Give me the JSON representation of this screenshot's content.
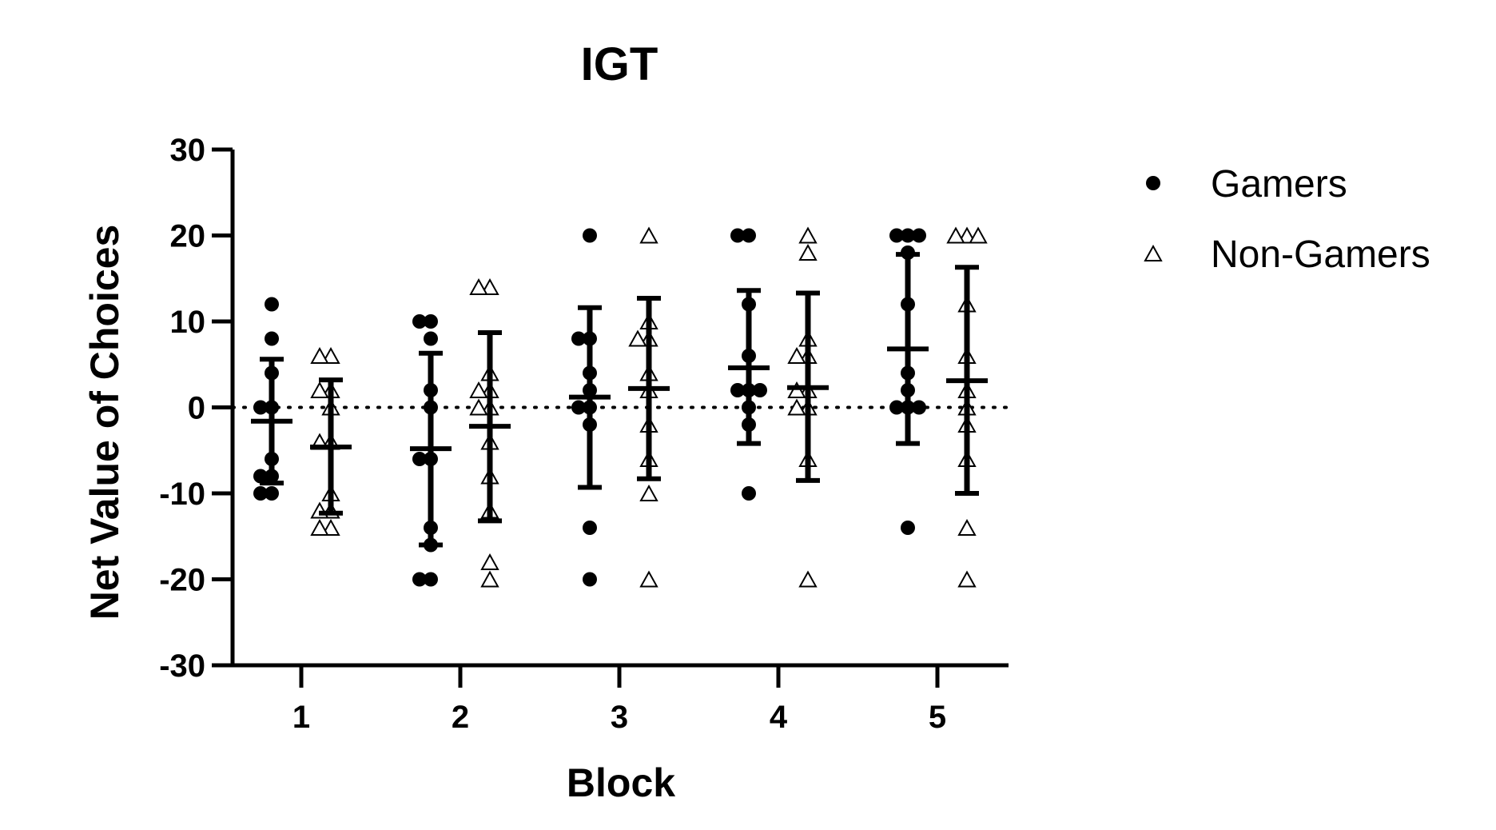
{
  "chart_data": {
    "type": "scatter",
    "title": "IGT",
    "xlabel": "Block",
    "ylabel": "Net Value of Choices",
    "ylim": [
      -30,
      30
    ],
    "yticks": [
      -30,
      -20,
      -10,
      0,
      10,
      20,
      30
    ],
    "categories": [
      "1",
      "2",
      "3",
      "4",
      "5"
    ],
    "reference_line": {
      "y": 0,
      "style": "dotted"
    },
    "legend": {
      "placement": "right"
    },
    "series": [
      {
        "name": "Gamers",
        "marker": "filled-circle",
        "color": "#000000",
        "points": [
          [
            12,
            8,
            4,
            0,
            0,
            -6,
            -8,
            -8,
            -10,
            -10
          ],
          [
            10,
            10,
            8,
            2,
            0,
            -6,
            -6,
            -14,
            -16,
            -20,
            -20
          ],
          [
            20,
            8,
            8,
            4,
            2,
            0,
            0,
            -2,
            -14,
            -20
          ],
          [
            20,
            20,
            12,
            6,
            2,
            2,
            2,
            0,
            -2,
            -10
          ],
          [
            20,
            20,
            20,
            18,
            12,
            4,
            2,
            0,
            0,
            0,
            -14
          ]
        ],
        "means": [
          -1.6,
          -4.8,
          1.2,
          4.6,
          6.8
        ],
        "error_upper": [
          5.6,
          6.3,
          11.6,
          13.6,
          17.8
        ],
        "error_lower": [
          -8.8,
          -16.0,
          -9.3,
          -4.2,
          -4.2
        ]
      },
      {
        "name": "Non-Gamers",
        "marker": "open-triangle",
        "color": "#000000",
        "points": [
          [
            6,
            6,
            2,
            2,
            0,
            -4,
            -4,
            -10,
            -12,
            -12,
            -14,
            -14
          ],
          [
            14,
            14,
            4,
            2,
            2,
            0,
            0,
            -4,
            -8,
            -12,
            -18,
            -20
          ],
          [
            20,
            10,
            8,
            8,
            4,
            2,
            -2,
            -6,
            -10,
            -20
          ],
          [
            20,
            18,
            8,
            6,
            6,
            2,
            2,
            0,
            0,
            -6,
            -20
          ],
          [
            20,
            20,
            20,
            12,
            6,
            2,
            0,
            -2,
            -6,
            -14,
            -20
          ]
        ],
        "means": [
          -4.6,
          -2.2,
          2.2,
          2.3,
          3.1
        ],
        "error_upper": [
          3.2,
          8.7,
          12.7,
          13.3,
          16.3
        ],
        "error_lower": [
          -12.3,
          -13.2,
          -8.3,
          -8.5,
          -10.0
        ]
      }
    ]
  }
}
